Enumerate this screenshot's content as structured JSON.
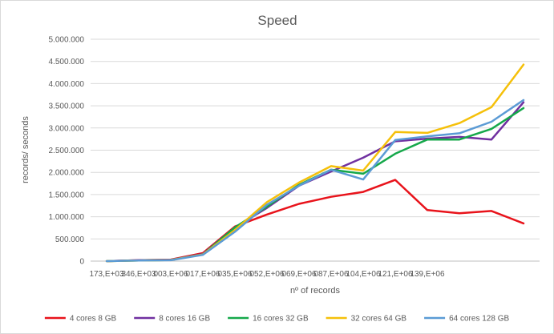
{
  "chart_data": {
    "type": "line",
    "title": "Speed",
    "xlabel": "nº of records",
    "ylabel": "records/ seconds",
    "ylim": [
      0,
      5000000
    ],
    "y_ticks": [
      "0",
      "500.000",
      "1.000.000",
      "1.500.000",
      "2.000.000",
      "2.500.000",
      "3.000.000",
      "3.500.000",
      "4.000.000",
      "4.500.000",
      "5.000.000"
    ],
    "x_tick_labels": [
      "173,E+03",
      "346,E+03",
      "003,E+06",
      "017,E+06",
      "035,E+06",
      "052,E+06",
      "069,E+06",
      "087,E+06",
      "104,E+06",
      "121,E+06",
      "139,E+06",
      "",
      "",
      ""
    ],
    "grid": true,
    "legend_position": "bottom",
    "series": [
      {
        "name": "4 cores 8 GB",
        "color": "#e8131b",
        "values": [
          0,
          20000,
          35000,
          180000,
          780000,
          1050000,
          1290000,
          1450000,
          1560000,
          1830000,
          1150000,
          1080000,
          1130000,
          850000
        ]
      },
      {
        "name": "8 cores 16 GB",
        "color": "#7030a0",
        "values": [
          0,
          20000,
          30000,
          160000,
          760000,
          1200000,
          1700000,
          2020000,
          2330000,
          2700000,
          2760000,
          2800000,
          2740000,
          3580000
        ]
      },
      {
        "name": "16 cores 32 GB",
        "color": "#15a84a",
        "values": [
          0,
          15000,
          25000,
          150000,
          760000,
          1230000,
          1720000,
          2060000,
          1970000,
          2420000,
          2740000,
          2740000,
          2980000,
          3450000
        ]
      },
      {
        "name": "32 cores 64 GB",
        "color": "#f5c00a",
        "values": [
          0,
          15000,
          25000,
          150000,
          700000,
          1330000,
          1770000,
          2140000,
          2040000,
          2910000,
          2890000,
          3110000,
          3470000,
          4430000
        ]
      },
      {
        "name": "64 cores 128 GB",
        "color": "#5b9bd5",
        "values": [
          0,
          15000,
          20000,
          140000,
          660000,
          1270000,
          1700000,
          2060000,
          1840000,
          2730000,
          2810000,
          2880000,
          3140000,
          3630000
        ]
      }
    ]
  }
}
